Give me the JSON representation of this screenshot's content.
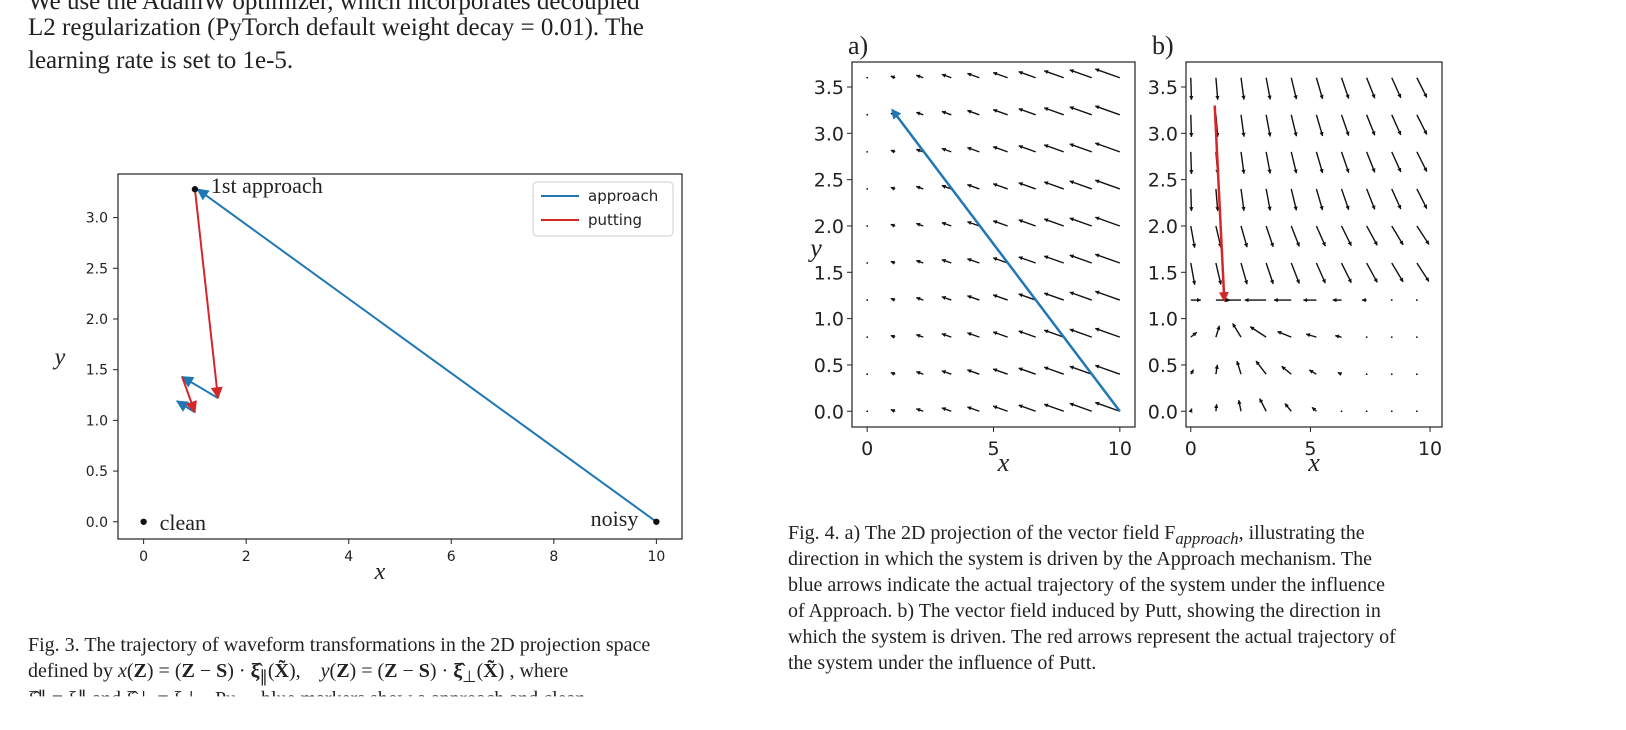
{
  "body_text": {
    "line0": "We use the AdamW optimizer, which incorporates decoupled",
    "line1": "L2 regularization (PyTorch default weight decay = 0.01). The",
    "line2": "learning rate is set to 1e-5."
  },
  "fig3": {
    "caption_line1": "Fig. 3.  The trajectory of waveform transformations in the 2D projection space",
    "caption_line2_prefix": "defined by",
    "caption_line2_suffix": ", where",
    "caption_line3": "ξ̂∥ = ξ∥ and ξ̂⊥ = ξ⊥ . Pu ... blue markers show a approach and clean"
  },
  "fig4": {
    "caption_lines": [
      "Fig. 4.  a) The 2D projection of the vector field F",
      "direction in which the system is driven by the Approach mechanism. The",
      "blue arrows indicate the actual trajectory of the system under the influence",
      "of Approach. b) The vector field induced by Putt, showing the direction in",
      "which the system is driven. The red arrows represent the actual trajectory of",
      "the system under the influence of Putt."
    ],
    "caption_line1_tail": ", illustrating the",
    "subscript": "approach"
  },
  "chart_data": [
    {
      "type": "line",
      "xlabel": "x",
      "ylabel": "y",
      "xlim": [
        -0.5,
        10.5
      ],
      "ylim": [
        -0.17,
        3.43
      ],
      "xticks": [
        0,
        2,
        4,
        6,
        8,
        10
      ],
      "yticks": [
        0.0,
        0.5,
        1.0,
        1.5,
        2.0,
        2.5,
        3.0
      ],
      "xtick_labels": [
        "0",
        "2",
        "4",
        "6",
        "8",
        "10"
      ],
      "ytick_labels": [
        "0.0",
        "0.5",
        "1.0",
        "1.5",
        "2.0",
        "2.5",
        "3.0"
      ],
      "legend": {
        "placement": "top-right",
        "entries": [
          "approach",
          "putting"
        ]
      },
      "series": [
        {
          "name": "approach",
          "color": "#1f77b4",
          "segments": [
            {
              "x": [
                10.0,
                1.05
              ],
              "y": [
                0.0,
                3.28
              ]
            },
            {
              "x": [
                1.45,
                0.75
              ],
              "y": [
                1.22,
                1.43
              ]
            },
            {
              "x": [
                1.0,
                0.65
              ],
              "y": [
                1.08,
                1.19
              ]
            }
          ]
        },
        {
          "name": "putting",
          "color": "#d62728",
          "segments": [
            {
              "x": [
                1.0,
                1.45
              ],
              "y": [
                3.28,
                1.22
              ]
            },
            {
              "x": [
                0.75,
                1.0
              ],
              "y": [
                1.43,
                1.08
              ]
            }
          ]
        }
      ],
      "points": [
        {
          "label": "1st approach",
          "x": 1.0,
          "y": 3.28
        },
        {
          "label": "clean",
          "x": 0.0,
          "y": 0.0
        },
        {
          "label": "noisy",
          "x": 10.0,
          "y": 0.0
        }
      ]
    },
    {
      "type": "quiver",
      "panel_label": "a)",
      "xlabel": "x",
      "ylabel": "y",
      "xlim": [
        -0.6,
        10.6
      ],
      "ylim": [
        -0.17,
        3.77
      ],
      "xticks": [
        0,
        5,
        10
      ],
      "yticks": [
        0.0,
        0.5,
        1.0,
        1.5,
        2.0,
        2.5,
        3.0,
        3.5
      ],
      "xtick_labels": [
        "0",
        "5",
        "10"
      ],
      "ytick_labels": [
        "0.0",
        "0.5",
        "1.0",
        "1.5",
        "2.0",
        "2.5",
        "3.0",
        "3.5"
      ],
      "trajectory": {
        "color": "#1f77b4",
        "x": [
          10.0,
          1.0
        ],
        "y": [
          0.0,
          3.25
        ]
      }
    },
    {
      "type": "quiver",
      "panel_label": "b)",
      "xlabel": "x",
      "xlim": [
        -0.2,
        10.5
      ],
      "ylim": [
        -0.17,
        3.77
      ],
      "xticks": [
        0,
        5,
        10
      ],
      "yticks": [
        0.0,
        0.5,
        1.0,
        1.5,
        2.0,
        2.5,
        3.0,
        3.5
      ],
      "xtick_labels": [
        "0",
        "5",
        "10"
      ],
      "ytick_labels": [
        "0.0",
        "0.5",
        "1.0",
        "1.5",
        "2.0",
        "2.5",
        "3.0",
        "3.5"
      ],
      "trajectory": {
        "color": "#d62728",
        "x": [
          1.0,
          1.4
        ],
        "y": [
          3.3,
          1.2
        ]
      }
    }
  ]
}
